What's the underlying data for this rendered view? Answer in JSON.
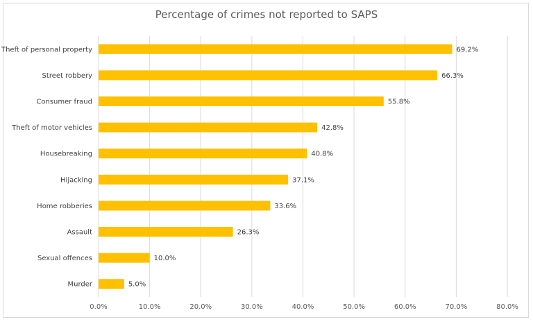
{
  "chart_data": {
    "type": "bar",
    "orientation": "horizontal",
    "title": "Percentage of crimes not reported to SAPS",
    "xlabel": "",
    "ylabel": "",
    "categories": [
      "Theft of personal property",
      "Street robbery",
      "Consumer fraud",
      "Theft of motor vehicles",
      "Housebreaking",
      "Hijacking",
      "Home robberies",
      "Assault",
      "Sexual offences",
      "Murder"
    ],
    "values": [
      69.2,
      66.3,
      55.8,
      42.8,
      40.8,
      37.1,
      33.6,
      26.3,
      10.0,
      5.0
    ],
    "value_labels": [
      "69.2%",
      "66.3%",
      "55.8%",
      "42.8%",
      "40.8%",
      "37.1%",
      "33.6%",
      "26.3%",
      "10.0%",
      "5.0%"
    ],
    "xlim": [
      0,
      80
    ],
    "x_ticks": [
      0,
      10,
      20,
      30,
      40,
      50,
      60,
      70,
      80
    ],
    "x_tick_labels": [
      "0.0%",
      "10.0%",
      "20.0%",
      "30.0%",
      "40.0%",
      "50.0%",
      "60.0%",
      "70.0%",
      "80.0%"
    ],
    "grid": "vertical",
    "legend": "none",
    "bar_color": "#ffc000",
    "grid_color": "#d9d9d9"
  }
}
